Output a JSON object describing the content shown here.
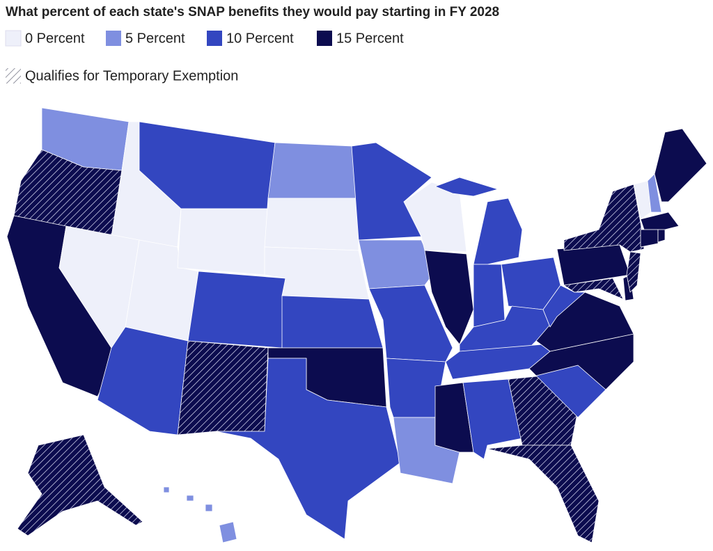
{
  "title": "What percent of each state's SNAP benefits they would pay starting in FY 2028",
  "legend": [
    {
      "value": 0,
      "label": "0 Percent",
      "color": "#eef0fa"
    },
    {
      "value": 5,
      "label": "5 Percent",
      "color": "#7f8fe0"
    },
    {
      "value": 10,
      "label": "10 Percent",
      "color": "#3346c0"
    },
    {
      "value": 15,
      "label": "15 Percent",
      "color": "#0c0c4f"
    }
  ],
  "exemption_label": "Qualifies for Temporary Exemption",
  "regions": [
    {
      "percent": 5,
      "exempt": false
    },
    {
      "percent": 15,
      "exempt": true
    },
    {
      "percent": 15,
      "exempt": false
    },
    {
      "percent": 0,
      "exempt": false
    },
    {
      "percent": 0,
      "exempt": false
    },
    {
      "percent": 0,
      "exempt": false
    },
    {
      "percent": 10,
      "exempt": false
    },
    {
      "percent": 0,
      "exempt": false
    },
    {
      "percent": 10,
      "exempt": false
    },
    {
      "percent": 10,
      "exempt": false
    },
    {
      "percent": 15,
      "exempt": true
    },
    {
      "percent": 5,
      "exempt": false
    },
    {
      "percent": 0,
      "exempt": false
    },
    {
      "percent": 0,
      "exempt": false
    },
    {
      "percent": 10,
      "exempt": false
    },
    {
      "percent": 15,
      "exempt": false
    },
    {
      "percent": 10,
      "exempt": false
    },
    {
      "percent": 10,
      "exempt": false
    },
    {
      "percent": 5,
      "exempt": false
    },
    {
      "percent": 10,
      "exempt": false
    },
    {
      "percent": 10,
      "exempt": false
    },
    {
      "percent": 5,
      "exempt": false
    },
    {
      "percent": 0,
      "exempt": false
    },
    {
      "percent": 15,
      "exempt": false
    },
    {
      "percent": 10,
      "exempt": false
    },
    {
      "percent": 10,
      "exempt": false
    },
    {
      "percent": 10,
      "exempt": false
    },
    {
      "percent": 10,
      "exempt": false
    },
    {
      "percent": 10,
      "exempt": false
    },
    {
      "percent": 15,
      "exempt": false
    },
    {
      "percent": 10,
      "exempt": false
    },
    {
      "percent": 15,
      "exempt": true
    },
    {
      "percent": 15,
      "exempt": true
    },
    {
      "percent": 10,
      "exempt": false
    },
    {
      "percent": 15,
      "exempt": false
    },
    {
      "percent": 15,
      "exempt": false
    },
    {
      "percent": 10,
      "exempt": false
    },
    {
      "percent": 15,
      "exempt": false
    },
    {
      "percent": 15,
      "exempt": true
    },
    {
      "percent": 15,
      "exempt": true
    },
    {
      "percent": 15,
      "exempt": false
    },
    {
      "percent": 15,
      "exempt": true
    },
    {
      "percent": 0,
      "exempt": false
    },
    {
      "percent": 5,
      "exempt": false
    },
    {
      "percent": 15,
      "exempt": false
    },
    {
      "percent": 15,
      "exempt": false
    },
    {
      "percent": 15,
      "exempt": false
    },
    {
      "percent": 15,
      "exempt": false
    },
    {
      "percent": 15,
      "exempt": true
    },
    {
      "percent": 5,
      "exempt": false
    }
  ]
}
